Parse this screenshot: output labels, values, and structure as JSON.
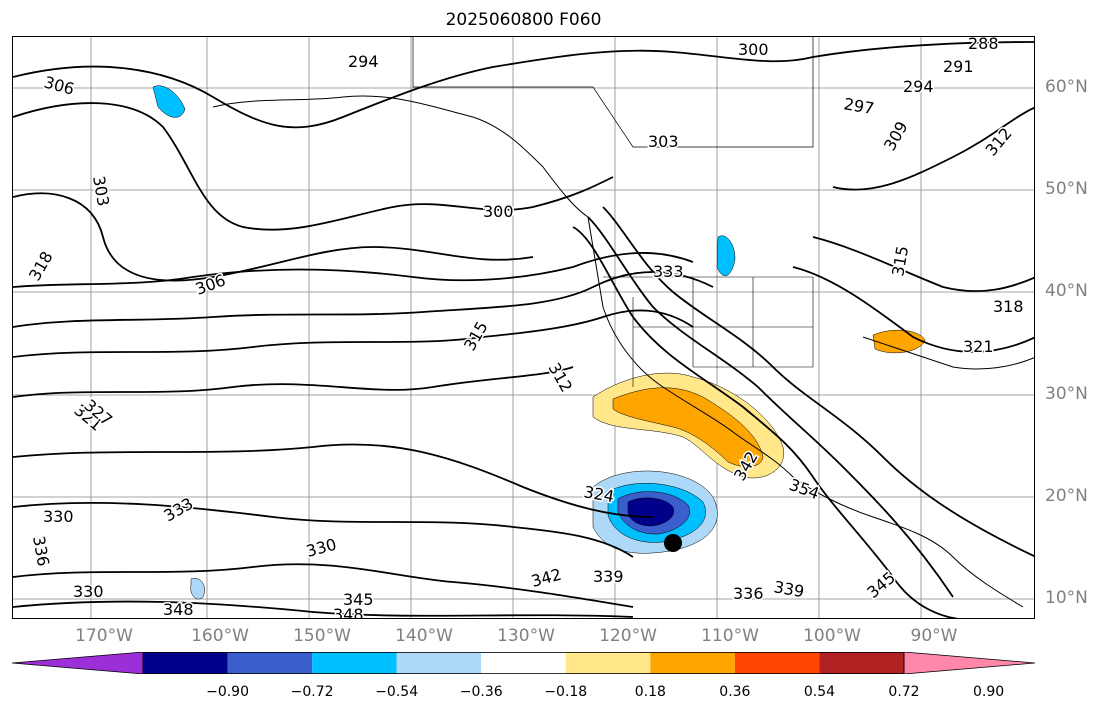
{
  "title": "2025060800 F060",
  "lat_labels": [
    "60°N",
    "50°N",
    "40°N",
    "30°N",
    "20°N",
    "10°N"
  ],
  "lon_labels": [
    "170°W",
    "160°W",
    "150°W",
    "140°W",
    "130°W",
    "120°W",
    "110°W",
    "100°W",
    "90°W"
  ],
  "contour_labels": [
    "288",
    "291",
    "294",
    "294",
    "297",
    "300",
    "300",
    "303",
    "303",
    "306",
    "306",
    "309",
    "312",
    "312",
    "315",
    "315",
    "318",
    "318",
    "321",
    "321",
    "324",
    "327",
    "330",
    "330",
    "330",
    "333",
    "333",
    "336",
    "336",
    "339",
    "339",
    "342",
    "342",
    "345",
    "345",
    "348",
    "348",
    "354"
  ],
  "colorbar": {
    "ticks": [
      "−0.90",
      "−0.72",
      "−0.54",
      "−0.36",
      "−0.18",
      "0.18",
      "0.36",
      "0.54",
      "0.72",
      "0.90"
    ],
    "colors": [
      "#9b30d9",
      "#00008b",
      "#3a5fcd",
      "#00bfff",
      "#add8f7",
      "#ffffff",
      "#ffe78a",
      "#ffa500",
      "#ff4500",
      "#b22222",
      "#ff88aa"
    ]
  },
  "colors": {
    "land": "#000000",
    "grid": "#808080",
    "contour": "#000000",
    "marker": "#000000"
  }
}
